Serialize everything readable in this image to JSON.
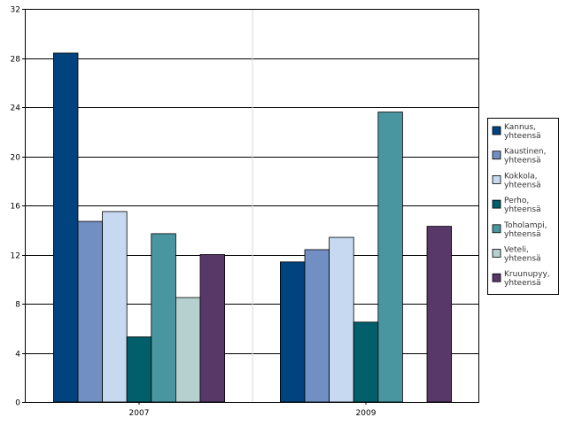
{
  "chart_data": {
    "type": "bar",
    "categories": [
      "2007",
      "2009"
    ],
    "ylim": [
      0,
      32
    ],
    "yticks": [
      0,
      4,
      8,
      12,
      16,
      20,
      24,
      28,
      32
    ],
    "grid": true,
    "legend_position": "right",
    "series": [
      {
        "name": "Kannus, yhteensä",
        "color": "#00437f",
        "values": [
          28.4,
          11.4
        ]
      },
      {
        "name": "Kaustinen, yhteensä",
        "color": "#728fc4",
        "values": [
          14.7,
          12.4
        ]
      },
      {
        "name": "Kokkola, yhteensä",
        "color": "#c6d9f1",
        "values": [
          15.5,
          13.4
        ]
      },
      {
        "name": "Perho, yhteensä",
        "color": "#005f6b",
        "values": [
          5.3,
          6.5
        ]
      },
      {
        "name": "Toholampi, yhteensä",
        "color": "#4a96a0",
        "values": [
          13.7,
          23.6
        ]
      },
      {
        "name": "Veteli, yhteensä",
        "color": "#b6d0d0",
        "values": [
          8.5,
          null
        ]
      },
      {
        "name": "Kruunupyy, yhteensä",
        "color": "#583769",
        "values": [
          12.0,
          14.3
        ]
      }
    ]
  }
}
